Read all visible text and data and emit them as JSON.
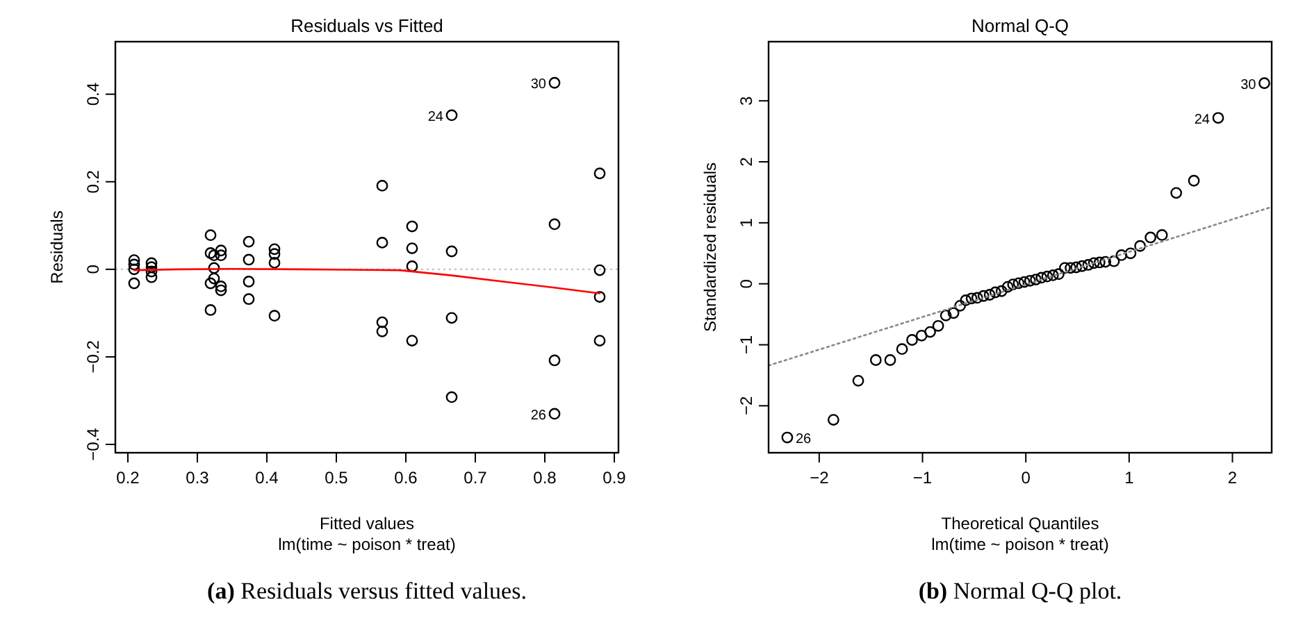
{
  "chart_data": [
    {
      "type": "scatter",
      "title": "Residuals vs Fitted",
      "xlabel": "Fitted values",
      "ylabel": "Residuals",
      "xlim": [
        0.182,
        0.906
      ],
      "ylim": [
        -0.419,
        0.52
      ],
      "xticks": [
        0.2,
        0.3,
        0.4,
        0.5,
        0.6,
        0.7,
        0.8,
        0.9
      ],
      "yticks": [
        -0.4,
        -0.2,
        0.0,
        0.2,
        0.4
      ],
      "grid": false,
      "series": [
        {
          "marker": "circle",
          "color": "#000000",
          "x": [
            0.209,
            0.209,
            0.209,
            0.209,
            0.234,
            0.234,
            0.234,
            0.234,
            0.319,
            0.319,
            0.319,
            0.319,
            0.324,
            0.324,
            0.324,
            0.334,
            0.334,
            0.334,
            0.334,
            0.374,
            0.374,
            0.374,
            0.374,
            0.411,
            0.411,
            0.411,
            0.411,
            0.566,
            0.566,
            0.566,
            0.566,
            0.609,
            0.609,
            0.609,
            0.609,
            0.666,
            0.666,
            0.666,
            0.666,
            0.814,
            0.814,
            0.814,
            0.814,
            0.879,
            0.879,
            0.879,
            0.879
          ],
          "values": [
            0.021,
            0.011,
            0.0,
            -0.032,
            0.014,
            0.005,
            -0.005,
            -0.018,
            0.078,
            0.037,
            -0.032,
            -0.093,
            0.032,
            0.003,
            -0.021,
            0.043,
            0.032,
            -0.039,
            -0.048,
            0.063,
            0.022,
            -0.028,
            -0.068,
            0.046,
            0.035,
            0.015,
            -0.106,
            0.191,
            0.061,
            -0.121,
            -0.142,
            0.098,
            0.048,
            0.007,
            -0.163,
            0.352,
            0.041,
            -0.111,
            -0.292,
            0.426,
            0.103,
            -0.208,
            -0.33,
            0.219,
            -0.002,
            -0.063,
            -0.163
          ]
        },
        {
          "type": "line",
          "color": "#ff0000",
          "line_style": "solid",
          "x": [
            0.209,
            0.275,
            0.35,
            0.45,
            0.591,
            0.666,
            0.75,
            0.814,
            0.879
          ],
          "values": [
            -0.002,
            0.0,
            0.001,
            0.0,
            -0.002,
            -0.014,
            -0.03,
            -0.042,
            -0.055
          ]
        }
      ],
      "ref_lines": [
        {
          "axis": "y",
          "value": 0,
          "color": "#bbbbbb",
          "line_style": "dotted"
        }
      ],
      "annotations": [
        {
          "text": "30",
          "x": 0.814,
          "y": 0.426
        },
        {
          "text": "24",
          "x": 0.666,
          "y": 0.352
        },
        {
          "text": "26",
          "x": 0.814,
          "y": -0.33
        },
        "lm(time ~ poison * treat)",
        "(a) Residuals versus fitted values."
      ]
    },
    {
      "type": "scatter",
      "title": "Normal Q-Q",
      "xlabel": "Theoretical Quantiles",
      "ylabel": "Standardized residuals",
      "xlim": [
        -2.49,
        2.38
      ],
      "ylim": [
        -2.77,
        3.97
      ],
      "xticks": [
        -2,
        -1,
        0,
        1,
        2
      ],
      "yticks": [
        -2,
        -1,
        0,
        1,
        2,
        3
      ],
      "grid": false,
      "series": [
        {
          "marker": "circle",
          "color": "#000000",
          "x": [
            -2.309,
            -1.862,
            -1.622,
            -1.452,
            -1.313,
            -1.198,
            -1.101,
            -1.009,
            -0.926,
            -0.848,
            -0.774,
            -0.7,
            -0.636,
            -0.581,
            -0.525,
            -0.47,
            -0.41,
            -0.35,
            -0.295,
            -0.235,
            -0.175,
            -0.124,
            -0.069,
            -0.014,
            0.041,
            0.097,
            0.152,
            0.207,
            0.263,
            0.318,
            0.378,
            0.433,
            0.488,
            0.544,
            0.604,
            0.659,
            0.714,
            0.77,
            0.853,
            0.926,
            1.014,
            1.106,
            1.207,
            1.318,
            1.456,
            1.627,
            1.862,
            2.309
          ],
          "values": [
            -2.52,
            -2.23,
            -1.59,
            -1.25,
            -1.25,
            -1.07,
            -0.92,
            -0.85,
            -0.79,
            -0.69,
            -0.52,
            -0.48,
            -0.36,
            -0.27,
            -0.24,
            -0.23,
            -0.2,
            -0.18,
            -0.14,
            -0.12,
            -0.05,
            -0.01,
            0.01,
            0.03,
            0.05,
            0.07,
            0.1,
            0.12,
            0.14,
            0.16,
            0.26,
            0.26,
            0.27,
            0.29,
            0.31,
            0.34,
            0.35,
            0.36,
            0.37,
            0.47,
            0.5,
            0.62,
            0.76,
            0.8,
            1.49,
            1.69,
            2.72,
            3.29
          ]
        },
        {
          "type": "line",
          "color": "#888888",
          "line_style": "dotted",
          "x": [
            -2.49,
            2.38
          ],
          "values": [
            -1.34,
            1.26
          ]
        }
      ],
      "annotations": [
        {
          "text": "30",
          "x": 2.309,
          "y": 3.29
        },
        {
          "text": "24",
          "x": 1.862,
          "y": 2.72
        },
        {
          "text": "26",
          "x": -2.309,
          "y": -2.52
        },
        "lm(time ~ poison * treat)",
        "(b) Normal Q-Q plot."
      ]
    }
  ]
}
